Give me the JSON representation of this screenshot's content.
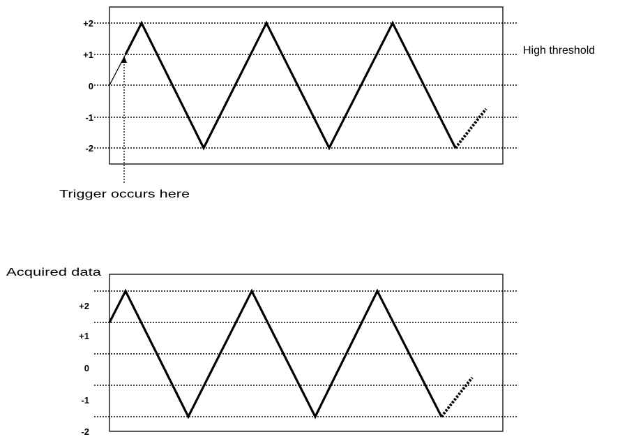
{
  "top_panel": {
    "y_labels": [
      "+2",
      "+1",
      "0",
      "-1",
      "-2"
    ],
    "threshold_label": "High threshold",
    "trigger_label": "Trigger occurs here",
    "threshold_level": 1
  },
  "bottom_panel": {
    "title": "Acquired data",
    "y_labels": [
      "+2",
      "+1",
      "0",
      "-1",
      "-2"
    ]
  },
  "waveform": {
    "type": "triangle",
    "max": 2,
    "min": -2,
    "peaks_shown": 3,
    "continuation_style": "dashed"
  },
  "colors": {
    "line": "#000000",
    "background": "#ffffff"
  }
}
